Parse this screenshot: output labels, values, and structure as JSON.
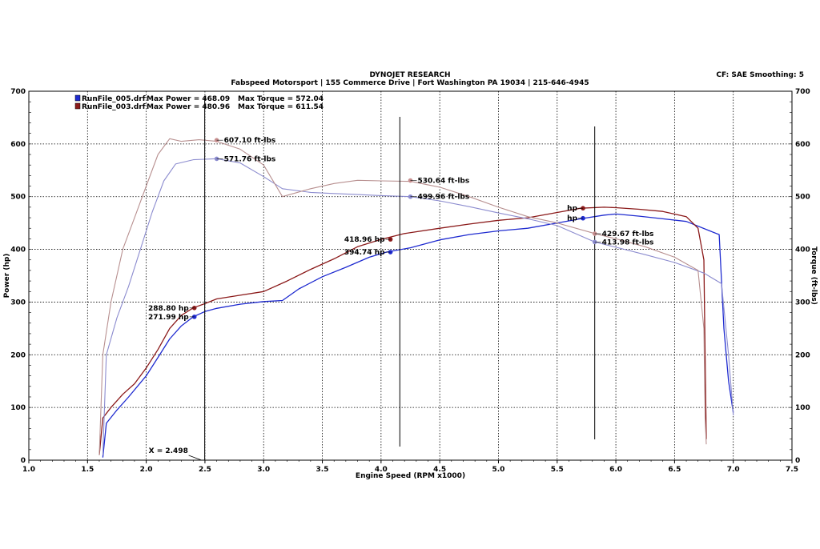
{
  "header": {
    "company": "DYNOJET RESEARCH",
    "shop": "Fabspeed Motorsport | 155 Commerce Drive | Fort Washington PA 19034 | 215-646-4945",
    "settings": "CF: SAE  Smoothing: 5"
  },
  "chart_data": {
    "type": "line",
    "xlabel": "Engine Speed (RPM x1000)",
    "ylabel_left": "Power (hp)",
    "ylabel_right": "Torque (ft-lbs)",
    "xlim": [
      1.0,
      7.5
    ],
    "ylim": [
      0,
      700
    ],
    "x_ticks": [
      "1.0",
      "1.5",
      "2.0",
      "2.5",
      "3.0",
      "3.5",
      "4.0",
      "4.5",
      "5.0",
      "5.5",
      "6.0",
      "6.5",
      "7.0",
      "7.5"
    ],
    "y_ticks": [
      "0",
      "100",
      "200",
      "300",
      "400",
      "500",
      "600",
      "700"
    ],
    "grid": true,
    "cursor_readout": "X = 2.498",
    "cursor_x": 2.498,
    "legend": [
      {
        "file": "RunFile_005.drf",
        "max_power_label": "Max Power = 468.09",
        "max_torque_label": "Max Torque = 572.04",
        "color": "#1f2bd0"
      },
      {
        "file": "RunFile_003.drf",
        "max_power_label": "Max Power = 480.96",
        "max_torque_label": "Max Torque = 611.54",
        "color": "#8b1a1a"
      }
    ],
    "markers": [
      2.498,
      4.16,
      5.82
    ],
    "series": [
      {
        "name": "RunFile_005.drf",
        "kind": "power",
        "color": "#1f2bd0",
        "x": [
          1.63,
          1.66,
          1.75,
          1.85,
          2.0,
          2.1,
          2.2,
          2.3,
          2.4,
          2.5,
          2.6,
          2.8,
          3.0,
          3.16,
          3.3,
          3.5,
          3.7,
          3.9,
          4.05,
          4.25,
          4.5,
          4.75,
          5.0,
          5.25,
          5.5,
          5.7,
          5.9,
          6.0,
          6.2,
          6.4,
          6.6,
          6.8,
          6.88,
          6.92,
          6.96,
          7.0
        ],
        "y": [
          5,
          70,
          95,
          120,
          160,
          195,
          230,
          255,
          272,
          282,
          288,
          296,
          301,
          303,
          325,
          348,
          366,
          385,
          395,
          403,
          418,
          428,
          435,
          440,
          450,
          458,
          465,
          467,
          463,
          458,
          453,
          435,
          428,
          250,
          150,
          90
        ]
      },
      {
        "name": "RunFile_003.drf",
        "kind": "power",
        "color": "#8b1a1a",
        "x": [
          1.6,
          1.63,
          1.7,
          1.8,
          1.9,
          2.0,
          2.1,
          2.2,
          2.3,
          2.4,
          2.5,
          2.6,
          2.8,
          3.0,
          3.2,
          3.4,
          3.6,
          3.8,
          4.0,
          4.2,
          4.5,
          4.75,
          5.0,
          5.25,
          5.5,
          5.7,
          5.9,
          6.0,
          6.2,
          6.4,
          6.6,
          6.7,
          6.75,
          6.76,
          6.77
        ],
        "y": [
          10,
          80,
          100,
          125,
          145,
          175,
          210,
          250,
          275,
          289,
          297,
          306,
          313,
          320,
          340,
          362,
          382,
          405,
          419,
          430,
          440,
          448,
          455,
          460,
          470,
          478,
          480,
          479,
          476,
          472,
          462,
          440,
          380,
          200,
          40
        ]
      },
      {
        "name": "RunFile_005.drf",
        "kind": "torque",
        "color": "#8c8ccf",
        "x": [
          1.63,
          1.66,
          1.75,
          1.85,
          1.95,
          2.05,
          2.15,
          2.25,
          2.4,
          2.6,
          2.8,
          3.0,
          3.16,
          3.4,
          3.6,
          3.8,
          4.0,
          4.25,
          4.5,
          4.75,
          5.0,
          5.25,
          5.5,
          5.82,
          6.0,
          6.25,
          6.5,
          6.75,
          6.9,
          6.96,
          7.0
        ],
        "y": [
          10,
          200,
          270,
          330,
          400,
          470,
          530,
          562,
          570,
          572,
          564,
          538,
          515,
          508,
          506,
          504,
          502,
          500,
          492,
          481,
          469,
          458,
          445,
          414,
          404,
          390,
          375,
          355,
          335,
          200,
          85
        ]
      },
      {
        "name": "RunFile_003.drf",
        "kind": "torque",
        "color": "#b89090",
        "x": [
          1.6,
          1.63,
          1.7,
          1.8,
          1.9,
          2.0,
          2.1,
          2.2,
          2.3,
          2.45,
          2.6,
          2.8,
          3.0,
          3.16,
          3.4,
          3.6,
          3.8,
          4.0,
          4.25,
          4.5,
          4.75,
          5.0,
          5.25,
          5.5,
          5.82,
          6.0,
          6.25,
          6.5,
          6.7,
          6.75,
          6.76,
          6.77
        ],
        "y": [
          10,
          200,
          300,
          400,
          460,
          520,
          580,
          610,
          605,
          608,
          605,
          590,
          560,
          500,
          515,
          525,
          531,
          530,
          529,
          518,
          500,
          480,
          462,
          450,
          430,
          420,
          405,
          385,
          360,
          250,
          80,
          30
        ]
      }
    ],
    "annotations": [
      {
        "label": "607.10 ft-lbs",
        "x": 2.6,
        "y": 607.1,
        "side": "right",
        "color": "#c89090"
      },
      {
        "label": "571.76 ft-lbs",
        "x": 2.6,
        "y": 571.76,
        "side": "right",
        "color": "#8c8ccf"
      },
      {
        "label": "530.64 ft-lbs",
        "x": 4.25,
        "y": 530.64,
        "side": "right",
        "color": "#c89090"
      },
      {
        "label": "499.96 ft-lbs",
        "x": 4.25,
        "y": 499.96,
        "side": "right",
        "color": "#8c8ccf"
      },
      {
        "label": "429.67 ft-lbs",
        "x": 5.82,
        "y": 429.67,
        "side": "right",
        "color": "#c89090"
      },
      {
        "label": "413.98 ft-lbs",
        "x": 5.82,
        "y": 413.98,
        "side": "right",
        "color": "#8c8ccf"
      },
      {
        "label": "288.80 hp",
        "x": 2.41,
        "y": 288.8,
        "side": "left",
        "color": "#8b1a1a"
      },
      {
        "label": "271.99 hp",
        "x": 2.41,
        "y": 271.99,
        "side": "left",
        "color": "#1f2bd0"
      },
      {
        "label": "418.96 hp",
        "x": 4.08,
        "y": 418.96,
        "side": "left",
        "color": "#8b1a1a"
      },
      {
        "label": "394.74 hp",
        "x": 4.08,
        "y": 394.74,
        "side": "left",
        "color": "#1f2bd0"
      },
      {
        "label": "hp",
        "x": 5.72,
        "y": 478,
        "side": "left",
        "color": "#8b1a1a"
      },
      {
        "label": "hp",
        "x": 5.72,
        "y": 459,
        "side": "left",
        "color": "#1f2bd0"
      }
    ]
  }
}
